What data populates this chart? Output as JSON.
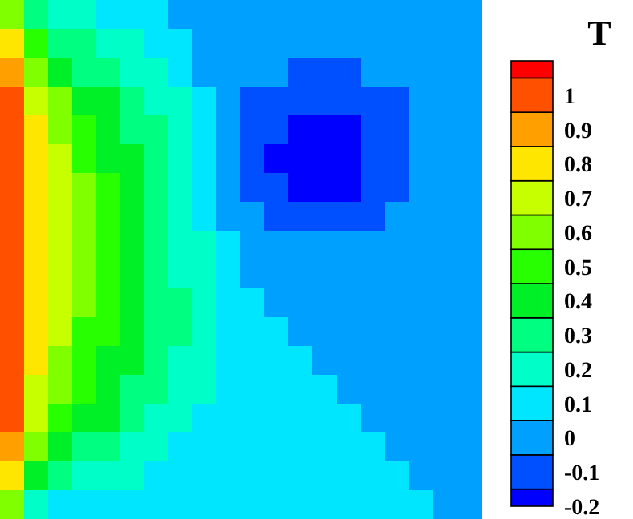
{
  "chart_data": {
    "type": "heatmap",
    "clabel": "T",
    "categories": [
      null,
      null,
      null,
      null,
      null,
      null,
      null,
      null,
      null,
      null,
      null,
      null,
      null,
      null,
      null,
      null,
      null,
      null,
      null,
      null
    ],
    "y_categories": [
      null,
      null,
      null,
      null,
      null,
      null,
      null,
      null,
      null,
      null,
      null,
      null,
      null,
      null,
      null,
      null,
      null,
      null
    ],
    "clim": [
      -0.2,
      1.1
    ],
    "cticks": [
      -0.2,
      -0.1,
      0,
      0.1,
      0.2,
      0.3,
      0.4,
      0.5,
      0.6,
      0.7,
      0.8,
      0.9,
      1
    ],
    "colors": [
      "#0000ff",
      "#0050ff",
      "#00a0ff",
      "#00e6ff",
      "#00ffc8",
      "#00ff80",
      "#00f028",
      "#28ff00",
      "#80ff00",
      "#c8ff00",
      "#ffe600",
      "#ffa000",
      "#ff5000",
      "#ff0000"
    ],
    "cells": [
      [
        0.6,
        0.3,
        0.2,
        0.2,
        0.1,
        0.1,
        0.1,
        0,
        0,
        0,
        0,
        0,
        0,
        0,
        0,
        0,
        0,
        0,
        0,
        0
      ],
      [
        0.8,
        0.5,
        0.3,
        0.3,
        0.2,
        0.2,
        0.1,
        0.1,
        0,
        0,
        0,
        0,
        0,
        0,
        0,
        0,
        0,
        0,
        0,
        0
      ],
      [
        0.9,
        0.6,
        0.4,
        0.3,
        0.3,
        0.2,
        0.2,
        0.1,
        0,
        0,
        0,
        0,
        -0.1,
        -0.1,
        -0.1,
        0,
        0,
        0,
        0,
        0
      ],
      [
        1,
        0.7,
        0.6,
        0.4,
        0.4,
        0.3,
        0.2,
        0.2,
        0.1,
        0,
        -0.1,
        -0.1,
        -0.1,
        -0.1,
        -0.1,
        -0.1,
        -0.1,
        0,
        0,
        0
      ],
      [
        1,
        0.8,
        0.6,
        0.5,
        0.4,
        0.3,
        0.3,
        0.2,
        0.1,
        0,
        -0.1,
        -0.1,
        -0.2,
        -0.2,
        -0.2,
        -0.1,
        -0.1,
        0,
        0,
        0
      ],
      [
        1,
        0.8,
        0.7,
        0.5,
        0.4,
        0.4,
        0.3,
        0.2,
        0.1,
        0,
        -0.1,
        -0.2,
        -0.2,
        -0.2,
        -0.2,
        -0.1,
        -0.1,
        0,
        0,
        0
      ],
      [
        1,
        0.8,
        0.7,
        0.6,
        0.5,
        0.4,
        0.3,
        0.2,
        0.1,
        0,
        -0.1,
        -0.1,
        -0.2,
        -0.2,
        -0.2,
        -0.1,
        -0.1,
        0,
        0,
        0
      ],
      [
        1,
        0.8,
        0.7,
        0.6,
        0.5,
        0.4,
        0.3,
        0.2,
        0.1,
        0,
        0,
        -0.1,
        -0.1,
        -0.1,
        -0.1,
        -0.1,
        0,
        0,
        0,
        0
      ],
      [
        1,
        0.8,
        0.7,
        0.6,
        0.5,
        0.4,
        0.3,
        0.2,
        0.2,
        0.1,
        0,
        0,
        0,
        0,
        0,
        0,
        0,
        0,
        0,
        0
      ],
      [
        1,
        0.8,
        0.7,
        0.6,
        0.5,
        0.4,
        0.3,
        0.2,
        0.2,
        0.1,
        0,
        0,
        0,
        0,
        0,
        0,
        0,
        0,
        0,
        0
      ],
      [
        1,
        0.8,
        0.7,
        0.6,
        0.5,
        0.4,
        0.3,
        0.3,
        0.2,
        0.1,
        0.1,
        0,
        0,
        0,
        0,
        0,
        0,
        0,
        0,
        0
      ],
      [
        1,
        0.8,
        0.7,
        0.5,
        0.5,
        0.4,
        0.3,
        0.3,
        0.2,
        0.1,
        0.1,
        0.1,
        0,
        0,
        0,
        0,
        0,
        0,
        0,
        0
      ],
      [
        1,
        0.8,
        0.6,
        0.5,
        0.4,
        0.4,
        0.3,
        0.2,
        0.2,
        0.1,
        0.1,
        0.1,
        0.1,
        0,
        0,
        0,
        0,
        0,
        0,
        0
      ],
      [
        1,
        0.7,
        0.6,
        0.5,
        0.4,
        0.3,
        0.3,
        0.2,
        0.2,
        0.1,
        0.1,
        0.1,
        0.1,
        0.1,
        0,
        0,
        0,
        0,
        0,
        0
      ],
      [
        1,
        0.7,
        0.5,
        0.4,
        0.4,
        0.3,
        0.2,
        0.2,
        0.1,
        0.1,
        0.1,
        0.1,
        0.1,
        0.1,
        0.1,
        0,
        0,
        0,
        0,
        0
      ],
      [
        0.9,
        0.6,
        0.4,
        0.3,
        0.3,
        0.2,
        0.2,
        0.1,
        0.1,
        0.1,
        0.1,
        0.1,
        0.1,
        0.1,
        0.1,
        0.1,
        0,
        0,
        0,
        0
      ],
      [
        0.8,
        0.4,
        0.3,
        0.2,
        0.2,
        0.2,
        0.1,
        0.1,
        0.1,
        0.1,
        0.1,
        0.1,
        0.1,
        0.1,
        0.1,
        0.1,
        0.1,
        0,
        0,
        0
      ],
      [
        0.6,
        0.2,
        0.1,
        0.1,
        0.1,
        0.1,
        0.1,
        0.1,
        0.1,
        0.1,
        0.1,
        0.1,
        0.1,
        0.1,
        0.1,
        0.1,
        0.1,
        0.1,
        0,
        0
      ]
    ]
  }
}
